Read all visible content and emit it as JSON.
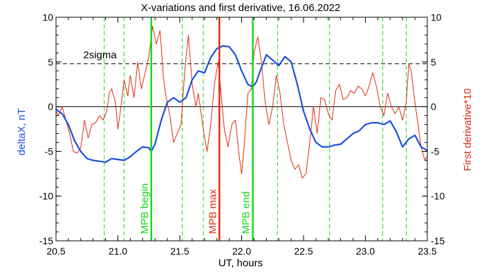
{
  "chart_data": {
    "type": "line",
    "title": "X-variations and first derivative, 16.06.2022",
    "xlabel": "UT, hours",
    "ylabel_left": "deltaX, nT",
    "ylabel_right": "First derivative*10",
    "xlim": [
      20.5,
      23.5
    ],
    "ylim": [
      -15,
      10
    ],
    "x_ticks": [
      "20.5",
      "21.0",
      "21.5",
      "22.0",
      "22.5",
      "23.0",
      "23.5"
    ],
    "x_tick_values": [
      20.5,
      21.0,
      21.5,
      22.0,
      22.5,
      23.0,
      23.5
    ],
    "y_ticks": [
      "10",
      "5",
      "0",
      "-5",
      "-10",
      "-15"
    ],
    "y_tick_values": [
      10,
      5,
      0,
      -5,
      -10,
      -15
    ],
    "colors": {
      "deltaX": "#1a4fe0",
      "derivative": "#e02a10",
      "green": "#19d819",
      "red_marker": "#e02a10",
      "dashed_green": "#19d819"
    },
    "grid": false,
    "threshold": {
      "label": "2sigma",
      "y": 4.8
    },
    "markers": [
      {
        "label": "MPB begin",
        "x": 21.27,
        "color": "#19d819"
      },
      {
        "label": "MPB max",
        "x": 21.82,
        "color": "#e02a10"
      },
      {
        "label": "MPB end",
        "x": 22.09,
        "color": "#19d819"
      }
    ],
    "dashed_lines_x": [
      20.89,
      21.05,
      21.52,
      21.69,
      22.29,
      22.71,
      23.14,
      23.33
    ],
    "series": [
      {
        "key": "deltaX",
        "x": [
          20.5,
          20.55,
          20.6,
          20.65,
          20.7,
          20.75,
          20.8,
          20.85,
          20.9,
          20.95,
          21.0,
          21.05,
          21.1,
          21.15,
          21.2,
          21.25,
          21.27,
          21.3,
          21.35,
          21.4,
          21.45,
          21.5,
          21.55,
          21.6,
          21.65,
          21.7,
          21.75,
          21.8,
          21.85,
          21.9,
          21.95,
          22.0,
          22.05,
          22.09,
          22.12,
          22.15,
          22.2,
          22.25,
          22.3,
          22.35,
          22.4,
          22.45,
          22.5,
          22.55,
          22.6,
          22.65,
          22.7,
          22.75,
          22.8,
          22.85,
          22.9,
          22.95,
          23.0,
          23.05,
          23.1,
          23.15,
          23.2,
          23.25,
          23.3,
          23.35,
          23.4,
          23.45,
          23.5
        ],
        "values": [
          -0.3,
          -0.8,
          -2.0,
          -3.8,
          -5.0,
          -5.8,
          -6.0,
          -6.1,
          -6.2,
          -5.8,
          -5.9,
          -6.0,
          -5.6,
          -5.0,
          -4.5,
          -4.6,
          -5.0,
          -4.2,
          -1.5,
          0.5,
          1.0,
          0.5,
          1.0,
          3.0,
          4.0,
          3.8,
          5.5,
          6.5,
          6.8,
          6.7,
          5.8,
          4.0,
          2.5,
          2.2,
          2.8,
          4.0,
          5.8,
          5.2,
          4.6,
          5.6,
          5.0,
          2.5,
          -0.5,
          -2.5,
          -4.0,
          -4.5,
          -4.5,
          -4.3,
          -4.2,
          -3.6,
          -3.0,
          -2.7,
          -2.0,
          -1.8,
          -1.8,
          -2.0,
          -1.6,
          -2.8,
          -4.5,
          -3.6,
          -3.2,
          -4.5,
          -4.9
        ]
      },
      {
        "key": "derivative",
        "x": [
          20.5,
          20.52,
          20.55,
          20.58,
          20.61,
          20.64,
          20.67,
          20.7,
          20.73,
          20.76,
          20.79,
          20.82,
          20.85,
          20.88,
          20.91,
          20.93,
          20.95,
          20.98,
          21.0,
          21.02,
          21.05,
          21.08,
          21.1,
          21.13,
          21.16,
          21.19,
          21.22,
          21.25,
          21.28,
          21.31,
          21.34,
          21.37,
          21.39,
          21.42,
          21.45,
          21.48,
          21.51,
          21.54,
          21.57,
          21.6,
          21.63,
          21.65,
          21.67,
          21.69,
          21.72,
          21.75,
          21.78,
          21.81,
          21.83,
          21.86,
          21.89,
          21.92,
          21.95,
          21.98,
          22.0,
          22.02,
          22.05,
          22.08,
          22.1,
          22.13,
          22.16,
          22.19,
          22.22,
          22.25,
          22.28,
          22.31,
          22.34,
          22.37,
          22.4,
          22.43,
          22.46,
          22.49,
          22.52,
          22.55,
          22.58,
          22.61,
          22.64,
          22.67,
          22.7,
          22.73,
          22.76,
          22.79,
          22.82,
          22.85,
          22.88,
          22.91,
          22.94,
          22.97,
          23.0,
          23.03,
          23.06,
          23.09,
          23.12,
          23.15,
          23.18,
          23.21,
          23.24,
          23.27,
          23.3,
          23.33,
          23.35,
          23.37,
          23.4,
          23.42,
          23.45,
          23.48,
          23.5
        ],
        "values": [
          -0.5,
          -1.0,
          0.0,
          -1.5,
          -3.0,
          -5.0,
          -5.2,
          -4.6,
          -1.5,
          -3.5,
          -2.0,
          -1.8,
          -1.0,
          -1.5,
          -0.5,
          1.5,
          2.0,
          0.5,
          -2.5,
          -0.5,
          3.0,
          1.2,
          3.5,
          1.0,
          5.0,
          2.0,
          3.8,
          5.6,
          9.0,
          7.0,
          8.5,
          3.0,
          1.0,
          -1.0,
          -4.0,
          -3.0,
          -2.0,
          4.0,
          8.0,
          2.5,
          0.0,
          1.5,
          -0.5,
          -2.5,
          -5.0,
          -2.0,
          2.5,
          5.0,
          2.0,
          -2.5,
          -4.5,
          -2.0,
          -1.5,
          -5.5,
          -7.5,
          -4.5,
          1.5,
          2.0,
          6.0,
          7.8,
          5.0,
          0.5,
          -2.0,
          0.0,
          3.5,
          1.5,
          -2.0,
          -4.0,
          -6.0,
          -7.0,
          -6.5,
          -8.0,
          -7.5,
          -4.0,
          0.0,
          -3.0,
          1.0,
          0.8,
          -0.8,
          -1.5,
          1.8,
          2.5,
          0.8,
          1.0,
          1.8,
          1.5,
          2.3,
          2.0,
          1.2,
          2.3,
          3.8,
          2.2,
          0.0,
          -1.0,
          1.5,
          0.0,
          -0.8,
          0.0,
          -1.5,
          0.5,
          4.8,
          4.0,
          0.5,
          -1.5,
          -4.5,
          -6.0,
          -5.5
        ]
      }
    ]
  }
}
